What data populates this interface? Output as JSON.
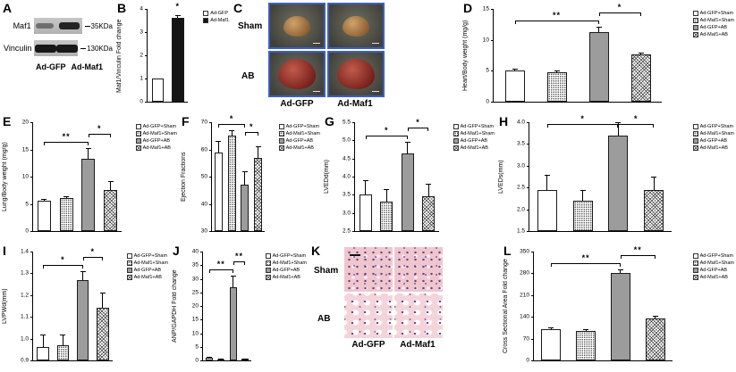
{
  "colors": {
    "bar_gray": "#9c9c9c",
    "bar_black": "#141414",
    "photo_frame_blue": "#3b5fc0",
    "histology_pink": "#efc6ce",
    "heart_sham_tan": "#b98a55",
    "heart_ab_red": "#8e2d26"
  },
  "panels": {
    "A": {
      "label": "A",
      "rows": [
        {
          "protein": "Maf1",
          "size": "35KDa"
        },
        {
          "protein": "Vinculin",
          "size": "130KDa"
        }
      ],
      "lanes": [
        "Ad-GFP",
        "Ad-Maf1"
      ]
    },
    "C": {
      "label": "C",
      "row_labels": [
        "Sham",
        "AB"
      ],
      "col_labels": [
        "Ad-GFP",
        "Ad-Maf1"
      ]
    },
    "K": {
      "label": "K",
      "row_labels": [
        "Sham",
        "AB"
      ],
      "col_labels": [
        "Ad-GFP",
        "Ad-Maf1"
      ]
    }
  },
  "chart_data": [
    {
      "id": "B",
      "panel_label": "B",
      "type": "bar",
      "title": "",
      "xlabel": "",
      "ylabel": "Maf1/Vinculin Fold change",
      "categories": [
        "Ad-GFP",
        "Ad-Maf1"
      ],
      "values": [
        1.0,
        3.6
      ],
      "errors": [
        0,
        0.15
      ],
      "fills": [
        "white",
        "black"
      ],
      "ylim": [
        0,
        4
      ],
      "yticks": [
        "0",
        "1",
        "2",
        "3",
        "4"
      ],
      "legend": [
        {
          "label": "Ad-GFP",
          "fill": "white"
        },
        {
          "label": "Ad-Maf1",
          "fill": "black"
        }
      ],
      "sig": [
        {
          "from": 1,
          "to": 1,
          "label": "*"
        }
      ]
    },
    {
      "id": "D",
      "panel_label": "D",
      "type": "bar",
      "title": "",
      "xlabel": "",
      "ylabel": "Heart/Body weight (mg/g)",
      "categories": [
        "Ad-GFP+Sham",
        "Ad-Maf1+Sham",
        "Ad-GFP+AB",
        "Ad-Maf1+AB"
      ],
      "values": [
        5.0,
        4.8,
        11.2,
        7.6
      ],
      "errors": [
        0.3,
        0.2,
        0.9,
        0.4
      ],
      "fills": [
        "white",
        "stipple",
        "gray",
        "hatch"
      ],
      "ylim": [
        0,
        15
      ],
      "yticks": [
        "0",
        "5",
        "10",
        "15"
      ],
      "legend": [
        {
          "label": "Ad-GFP+Sham",
          "fill": "white"
        },
        {
          "label": "Ad-Maf1+Sham",
          "fill": "stipple"
        },
        {
          "label": "Ad-GFP+AB",
          "fill": "gray"
        },
        {
          "label": "Ad-Maf1+AB",
          "fill": "hatch"
        }
      ],
      "sig": [
        {
          "from": 0,
          "to": 2,
          "label": "**"
        },
        {
          "from": 2,
          "to": 3,
          "label": "*"
        }
      ]
    },
    {
      "id": "E",
      "panel_label": "E",
      "type": "bar",
      "title": "",
      "xlabel": "",
      "ylabel": "Lung/Body weight (mg/g)",
      "categories": [
        "Ad-GFP+Sham",
        "Ad-Maf1+Sham",
        "Ad-GFP+AB",
        "Ad-Maf1+AB"
      ],
      "values": [
        5.5,
        6.0,
        13.2,
        7.6
      ],
      "errors": [
        0.4,
        0.4,
        2.0,
        1.6
      ],
      "fills": [
        "white",
        "stipple",
        "gray",
        "hatch"
      ],
      "ylim": [
        0,
        20
      ],
      "yticks": [
        "0",
        "5",
        "10",
        "15",
        "20"
      ],
      "legend": [
        {
          "label": "Ad-GFP+Sham",
          "fill": "white"
        },
        {
          "label": "Ad-Maf1+Sham",
          "fill": "stipple"
        },
        {
          "label": "Ad-GFP+AB",
          "fill": "gray"
        },
        {
          "label": "Ad-Maf1+AB",
          "fill": "hatch"
        }
      ],
      "sig": [
        {
          "from": 0,
          "to": 2,
          "label": "**"
        },
        {
          "from": 2,
          "to": 3,
          "label": "*"
        }
      ]
    },
    {
      "id": "F",
      "panel_label": "F",
      "type": "bar",
      "title": "",
      "xlabel": "",
      "ylabel": "Ejection Fractions",
      "categories": [
        "Ad-GFP+Sham",
        "Ad-Maf1+Sham",
        "Ad-GFP+AB",
        "Ad-Maf1+AB"
      ],
      "values": [
        59,
        65,
        47,
        57
      ],
      "errors": [
        4,
        2,
        5,
        4
      ],
      "fills": [
        "white",
        "stipple",
        "gray",
        "hatch"
      ],
      "ylim": [
        30,
        70
      ],
      "yticks": [
        "30",
        "40",
        "50",
        "60",
        "70"
      ],
      "legend": [
        {
          "label": "Ad-GFP+Sham",
          "fill": "white"
        },
        {
          "label": "Ad-Maf1+Sham",
          "fill": "stipple"
        },
        {
          "label": "Ad-GFP+AB",
          "fill": "gray"
        },
        {
          "label": "Ad-Maf1+AB",
          "fill": "hatch"
        }
      ],
      "sig": [
        {
          "from": 0,
          "to": 2,
          "label": "*"
        },
        {
          "from": 2,
          "to": 3,
          "label": "*"
        }
      ]
    },
    {
      "id": "G",
      "panel_label": "G",
      "type": "bar",
      "title": "",
      "xlabel": "",
      "ylabel": "LVEDd(mm)",
      "categories": [
        "Ad-GFP+Sham",
        "Ad-Maf1+Sham",
        "Ad-GFP+AB",
        "Ad-Maf1+AB"
      ],
      "values": [
        3.5,
        3.3,
        4.65,
        3.45
      ],
      "errors": [
        0.4,
        0.35,
        0.3,
        0.35
      ],
      "fills": [
        "white",
        "stipple",
        "gray",
        "hatch"
      ],
      "ylim": [
        2.5,
        5.5
      ],
      "yticks": [
        "2.5",
        "3.0",
        "3.5",
        "4.0",
        "4.5",
        "5.0",
        "5.5"
      ],
      "legend": [
        {
          "label": "Ad-GFP+Sham",
          "fill": "white"
        },
        {
          "label": "Ad-Maf1+Sham",
          "fill": "stipple"
        },
        {
          "label": "Ad-GFP+AB",
          "fill": "gray"
        },
        {
          "label": "Ad-Maf1+AB",
          "fill": "hatch"
        }
      ],
      "sig": [
        {
          "from": 0,
          "to": 2,
          "label": "*"
        },
        {
          "from": 2,
          "to": 3,
          "label": "*"
        }
      ]
    },
    {
      "id": "H",
      "panel_label": "H",
      "type": "bar",
      "title": "",
      "xlabel": "",
      "ylabel": "LVEDs(mm)",
      "categories": [
        "Ad-GFP+Sham",
        "Ad-Maf1+Sham",
        "Ad-GFP+AB",
        "Ad-Maf1+AB"
      ],
      "values": [
        2.45,
        2.2,
        3.7,
        2.45
      ],
      "errors": [
        0.35,
        0.25,
        0.3,
        0.3
      ],
      "fills": [
        "white",
        "stipple",
        "gray",
        "hatch"
      ],
      "ylim": [
        1.5,
        4.0
      ],
      "yticks": [
        "1.5",
        "2.0",
        "2.5",
        "3.0",
        "3.5",
        "4.0"
      ],
      "legend": [
        {
          "label": "Ad-GFP+Sham",
          "fill": "white"
        },
        {
          "label": "Ad-Maf1+Sham",
          "fill": "stipple"
        },
        {
          "label": "Ad-GFP+AB",
          "fill": "gray"
        },
        {
          "label": "Ad-Maf1+AB",
          "fill": "hatch"
        }
      ],
      "sig": [
        {
          "from": 0,
          "to": 2,
          "label": "*"
        },
        {
          "from": 2,
          "to": 3,
          "label": "*"
        }
      ]
    },
    {
      "id": "I",
      "panel_label": "I",
      "type": "bar",
      "title": "",
      "xlabel": "",
      "ylabel": "LVPWd(mm)",
      "categories": [
        "Ad-GFP+Sham",
        "Ad-Maf1+Sham",
        "Ad-GFP+AB",
        "Ad-Maf1+AB"
      ],
      "values": [
        0.96,
        0.97,
        1.27,
        1.14
      ],
      "errors": [
        0.06,
        0.05,
        0.04,
        0.07
      ],
      "fills": [
        "white",
        "stipple",
        "gray",
        "hatch"
      ],
      "ylim": [
        0.9,
        1.4
      ],
      "yticks": [
        "0.9",
        "1.0",
        "1.1",
        "1.2",
        "1.3",
        "1.4"
      ],
      "legend": [
        {
          "label": "Ad-GFP+Sham",
          "fill": "white"
        },
        {
          "label": "Ad-Maf1+Sham",
          "fill": "stipple"
        },
        {
          "label": "Ad-GFP+AB",
          "fill": "gray"
        },
        {
          "label": "Ad-Maf1+AB",
          "fill": "hatch"
        }
      ],
      "sig": [
        {
          "from": 0,
          "to": 2,
          "label": "*"
        },
        {
          "from": 2,
          "to": 3,
          "label": "*"
        }
      ]
    },
    {
      "id": "J",
      "panel_label": "J",
      "type": "bar",
      "title": "",
      "xlabel": "",
      "ylabel": "ANP/GAPDH Fold change",
      "categories": [
        "Ad-GFP+Sham",
        "Ad-Maf1+Sham",
        "Ad-GFP+AB",
        "Ad-Maf1+AB"
      ],
      "values": [
        1.0,
        0.4,
        27,
        0.6
      ],
      "errors": [
        0.3,
        0.1,
        4,
        0.2
      ],
      "fills": [
        "white",
        "stipple",
        "gray",
        "hatch"
      ],
      "ylim": [
        0,
        40
      ],
      "yticks": [
        "0",
        "5",
        "10",
        "15",
        "20",
        "25",
        "30",
        "35",
        "40"
      ],
      "legend": [
        {
          "label": "Ad-GFP+Sham",
          "fill": "white"
        },
        {
          "label": "Ad-Maf1+Sham",
          "fill": "stipple"
        },
        {
          "label": "Ad-GFP+AB",
          "fill": "gray"
        },
        {
          "label": "Ad-Maf1+AB",
          "fill": "hatch"
        }
      ],
      "sig": [
        {
          "from": 0,
          "to": 2,
          "label": "**"
        },
        {
          "from": 2,
          "to": 3,
          "label": "**"
        }
      ]
    },
    {
      "id": "L",
      "panel_label": "L",
      "type": "bar",
      "title": "",
      "xlabel": "",
      "ylabel": "Cross Sectional Area Fold change",
      "categories": [
        "Ad-GFP+Sham",
        "Ad-Maf1+Sham",
        "Ad-GFP+AB",
        "Ad-Maf1+AB"
      ],
      "values": [
        100,
        95,
        282,
        135
      ],
      "errors": [
        6,
        6,
        10,
        8
      ],
      "fills": [
        "white",
        "stipple",
        "gray",
        "hatch"
      ],
      "ylim": [
        0,
        350
      ],
      "yticks": [
        "0",
        "70",
        "140",
        "210",
        "280",
        "350"
      ],
      "legend": [
        {
          "label": "Ad-GFP+Sham",
          "fill": "white"
        },
        {
          "label": "Ad-Maf1+Sham",
          "fill": "stipple"
        },
        {
          "label": "Ad-GFP+AB",
          "fill": "gray"
        },
        {
          "label": "Ad-Maf1+AB",
          "fill": "hatch"
        }
      ],
      "sig": [
        {
          "from": 0,
          "to": 2,
          "label": "**"
        },
        {
          "from": 2,
          "to": 3,
          "label": "**"
        }
      ]
    }
  ]
}
